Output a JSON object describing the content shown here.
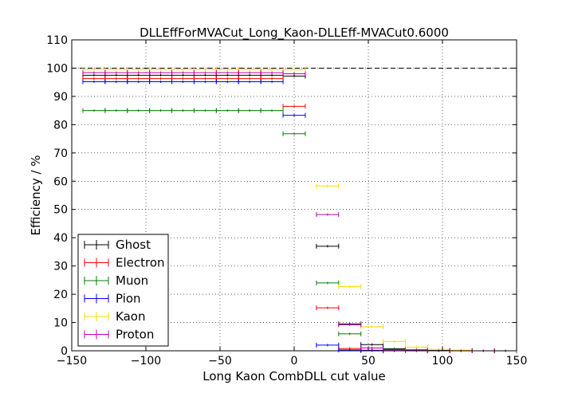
{
  "chart_data": {
    "type": "scatter",
    "title": "DLLEffForMVACut_Long_Kaon-DLLEff-MVACut0.6000",
    "xlabel": "Long Kaon CombDLL cut value",
    "ylabel": "Efficiency / %",
    "xlim": [
      -150,
      150
    ],
    "ylim": [
      0,
      110
    ],
    "xticks": [
      -150,
      -100,
      -50,
      0,
      50,
      100,
      150
    ],
    "yticks": [
      0,
      10,
      20,
      30,
      40,
      50,
      60,
      70,
      80,
      90,
      100,
      110
    ],
    "grid": true,
    "legend_position": "lower-left",
    "reference_line": {
      "y": 100,
      "style": "dashed"
    },
    "series": [
      {
        "name": "Ghost",
        "color": "#000000",
        "x": [
          -150,
          -135,
          -120,
          -105,
          -90,
          -75,
          -60,
          -45,
          -30,
          -15,
          0,
          22.5,
          37.5,
          52.5,
          67.5,
          82.5,
          97.5,
          112.5,
          127.5,
          142.5
        ],
        "xerr": [
          0,
          7.5,
          7.5,
          7.5,
          7.5,
          7.5,
          7.5,
          7.5,
          7.5,
          7.5,
          7.5,
          7.5,
          7.5,
          7.5,
          7.5,
          7.5,
          7.5,
          7.5,
          7.5,
          7.5
        ],
        "y": [
          97.5,
          97.5,
          97.5,
          97.5,
          97.5,
          97.5,
          97.5,
          97.5,
          97.5,
          97.5,
          97.2,
          37,
          9.5,
          2.2,
          0.7,
          0.3,
          0.1,
          0,
          0,
          0
        ]
      },
      {
        "name": "Electron",
        "color": "#ff0000",
        "x": [
          -150,
          -135,
          -120,
          -105,
          -90,
          -75,
          -60,
          -45,
          -30,
          -15,
          0,
          22.5,
          37.5,
          52.5,
          67.5,
          82.5,
          97.5,
          112.5,
          127.5,
          142.5
        ],
        "xerr": [
          0,
          7.5,
          7.5,
          7.5,
          7.5,
          7.5,
          7.5,
          7.5,
          7.5,
          7.5,
          7.5,
          7.5,
          7.5,
          7.5,
          7.5,
          7.5,
          7.5,
          7.5,
          7.5,
          7.5
        ],
        "y": [
          96.3,
          96.3,
          96.3,
          96.3,
          96.3,
          96.3,
          96.3,
          96.3,
          96.3,
          96.3,
          86.5,
          15.2,
          0.8,
          0.2,
          0,
          0,
          0,
          0,
          0,
          0
        ]
      },
      {
        "name": "Muon",
        "color": "#008000",
        "x": [
          -150,
          -135,
          -120,
          -105,
          -90,
          -75,
          -60,
          -45,
          -30,
          -15,
          0,
          22.5,
          37.5,
          52.5,
          67.5,
          82.5,
          97.5,
          112.5,
          127.5,
          142.5
        ],
        "xerr": [
          0,
          7.5,
          7.5,
          7.5,
          7.5,
          7.5,
          7.5,
          7.5,
          7.5,
          7.5,
          7.5,
          7.5,
          7.5,
          7.5,
          7.5,
          7.5,
          7.5,
          7.5,
          7.5,
          7.5
        ],
        "y": [
          85,
          85,
          85,
          85,
          85,
          85,
          85,
          85,
          85,
          85,
          76.8,
          24,
          6,
          1,
          0.5,
          0,
          0,
          0,
          0,
          0
        ]
      },
      {
        "name": "Pion",
        "color": "#0000ff",
        "x": [
          -150,
          -135,
          -120,
          -105,
          -90,
          -75,
          -60,
          -45,
          -30,
          -15,
          0,
          22.5,
          37.5,
          52.5,
          67.5,
          82.5,
          97.5,
          112.5,
          127.5,
          142.5
        ],
        "xerr": [
          0,
          7.5,
          7.5,
          7.5,
          7.5,
          7.5,
          7.5,
          7.5,
          7.5,
          7.5,
          7.5,
          7.5,
          7.5,
          7.5,
          7.5,
          7.5,
          7.5,
          7.5,
          7.5,
          7.5
        ],
        "y": [
          95.2,
          95.2,
          95.2,
          95.2,
          95.2,
          95.2,
          95.2,
          95.2,
          95.2,
          95.2,
          83.3,
          2,
          0.3,
          0.1,
          0,
          0,
          0,
          0,
          0,
          0
        ]
      },
      {
        "name": "Kaon",
        "color": "#ffd700",
        "x": [
          -150,
          -135,
          -120,
          -105,
          -90,
          -75,
          -60,
          -45,
          -30,
          -15,
          0,
          22.5,
          37.5,
          52.5,
          67.5,
          82.5,
          97.5,
          112.5,
          127.5,
          142.5
        ],
        "xerr": [
          0,
          7.5,
          7.5,
          7.5,
          7.5,
          7.5,
          7.5,
          7.5,
          7.5,
          7.5,
          7.5,
          7.5,
          7.5,
          7.5,
          7.5,
          7.5,
          7.5,
          7.5,
          7.5,
          7.5
        ],
        "y": [
          99.5,
          99.5,
          99.5,
          99.5,
          99.5,
          99.5,
          99.5,
          99.5,
          99.5,
          99.5,
          99.5,
          58.3,
          22.7,
          8.5,
          3.3,
          1.3,
          0.5,
          0.2,
          0,
          0
        ]
      },
      {
        "name": "Proton",
        "color": "#bf00bf",
        "x": [
          -150,
          -135,
          -120,
          -105,
          -90,
          -75,
          -60,
          -45,
          -30,
          -15,
          0,
          22.5,
          37.5,
          52.5,
          67.5,
          82.5,
          97.5,
          112.5,
          127.5,
          142.5
        ],
        "xerr": [
          0,
          7.5,
          7.5,
          7.5,
          7.5,
          7.5,
          7.5,
          7.5,
          7.5,
          7.5,
          7.5,
          7.5,
          7.5,
          7.5,
          7.5,
          7.5,
          7.5,
          7.5,
          7.5,
          7.5
        ],
        "y": [
          98.4,
          98.4,
          98.4,
          98.4,
          98.4,
          98.4,
          98.4,
          98.4,
          98.4,
          98.4,
          98,
          48.2,
          9.2,
          1,
          0.3,
          0.1,
          0,
          0,
          0,
          0
        ]
      }
    ]
  }
}
